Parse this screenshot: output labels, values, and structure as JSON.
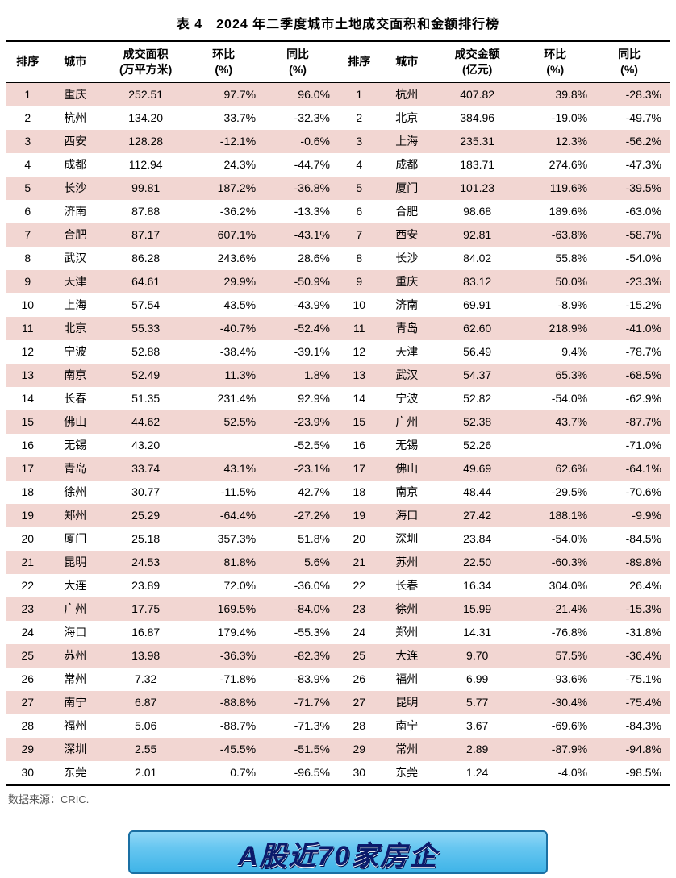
{
  "title": "表 4　2024 年二季度城市土地成交面积和金额排行榜",
  "source": "数据来源：CRIC.",
  "banner_text": "A股近70家房企",
  "colors": {
    "row_odd_bg": "#f2d6d2",
    "row_even_bg": "#ffffff",
    "border": "#000000",
    "text": "#000000",
    "source_text": "#555555",
    "banner_gradient_top": "#8fd7f7",
    "banner_gradient_mid": "#66c6f0",
    "banner_gradient_bot": "#3fb4e8",
    "banner_border": "#1a6fa3",
    "banner_text": "#0b1a6b"
  },
  "left_table": {
    "type": "table",
    "headers": {
      "rank": "排序",
      "city": "城市",
      "value_l1": "成交面积",
      "value_l2": "(万平方米)",
      "mom_l1": "环比",
      "mom_l2": "(%)",
      "yoy_l1": "同比",
      "yoy_l2": "(%)"
    },
    "rows": [
      {
        "rank": "1",
        "city": "重庆",
        "value": "252.51",
        "mom": "97.7%",
        "yoy": "96.0%"
      },
      {
        "rank": "2",
        "city": "杭州",
        "value": "134.20",
        "mom": "33.7%",
        "yoy": "-32.3%"
      },
      {
        "rank": "3",
        "city": "西安",
        "value": "128.28",
        "mom": "-12.1%",
        "yoy": "-0.6%"
      },
      {
        "rank": "4",
        "city": "成都",
        "value": "112.94",
        "mom": "24.3%",
        "yoy": "-44.7%"
      },
      {
        "rank": "5",
        "city": "长沙",
        "value": "99.81",
        "mom": "187.2%",
        "yoy": "-36.8%"
      },
      {
        "rank": "6",
        "city": "济南",
        "value": "87.88",
        "mom": "-36.2%",
        "yoy": "-13.3%"
      },
      {
        "rank": "7",
        "city": "合肥",
        "value": "87.17",
        "mom": "607.1%",
        "yoy": "-43.1%"
      },
      {
        "rank": "8",
        "city": "武汉",
        "value": "86.28",
        "mom": "243.6%",
        "yoy": "28.6%"
      },
      {
        "rank": "9",
        "city": "天津",
        "value": "64.61",
        "mom": "29.9%",
        "yoy": "-50.9%"
      },
      {
        "rank": "10",
        "city": "上海",
        "value": "57.54",
        "mom": "43.5%",
        "yoy": "-43.9%"
      },
      {
        "rank": "11",
        "city": "北京",
        "value": "55.33",
        "mom": "-40.7%",
        "yoy": "-52.4%"
      },
      {
        "rank": "12",
        "city": "宁波",
        "value": "52.88",
        "mom": "-38.4%",
        "yoy": "-39.1%"
      },
      {
        "rank": "13",
        "city": "南京",
        "value": "52.49",
        "mom": "11.3%",
        "yoy": "1.8%"
      },
      {
        "rank": "14",
        "city": "长春",
        "value": "51.35",
        "mom": "231.4%",
        "yoy": "92.9%"
      },
      {
        "rank": "15",
        "city": "佛山",
        "value": "44.62",
        "mom": "52.5%",
        "yoy": "-23.9%"
      },
      {
        "rank": "16",
        "city": "无锡",
        "value": "43.20",
        "mom": "",
        "yoy": "-52.5%"
      },
      {
        "rank": "17",
        "city": "青岛",
        "value": "33.74",
        "mom": "43.1%",
        "yoy": "-23.1%"
      },
      {
        "rank": "18",
        "city": "徐州",
        "value": "30.77",
        "mom": "-11.5%",
        "yoy": "42.7%"
      },
      {
        "rank": "19",
        "city": "郑州",
        "value": "25.29",
        "mom": "-64.4%",
        "yoy": "-27.2%"
      },
      {
        "rank": "20",
        "city": "厦门",
        "value": "25.18",
        "mom": "357.3%",
        "yoy": "51.8%"
      },
      {
        "rank": "21",
        "city": "昆明",
        "value": "24.53",
        "mom": "81.8%",
        "yoy": "5.6%"
      },
      {
        "rank": "22",
        "city": "大连",
        "value": "23.89",
        "mom": "72.0%",
        "yoy": "-36.0%"
      },
      {
        "rank": "23",
        "city": "广州",
        "value": "17.75",
        "mom": "169.5%",
        "yoy": "-84.0%"
      },
      {
        "rank": "24",
        "city": "海口",
        "value": "16.87",
        "mom": "179.4%",
        "yoy": "-55.3%"
      },
      {
        "rank": "25",
        "city": "苏州",
        "value": "13.98",
        "mom": "-36.3%",
        "yoy": "-82.3%"
      },
      {
        "rank": "26",
        "city": "常州",
        "value": "7.32",
        "mom": "-71.8%",
        "yoy": "-83.9%"
      },
      {
        "rank": "27",
        "city": "南宁",
        "value": "6.87",
        "mom": "-88.8%",
        "yoy": "-71.7%"
      },
      {
        "rank": "28",
        "city": "福州",
        "value": "5.06",
        "mom": "-88.7%",
        "yoy": "-71.3%"
      },
      {
        "rank": "29",
        "city": "深圳",
        "value": "2.55",
        "mom": "-45.5%",
        "yoy": "-51.5%"
      },
      {
        "rank": "30",
        "city": "东莞",
        "value": "2.01",
        "mom": "0.7%",
        "yoy": "-96.5%"
      }
    ]
  },
  "right_table": {
    "type": "table",
    "headers": {
      "rank": "排序",
      "city": "城市",
      "value_l1": "成交金额",
      "value_l2": "(亿元)",
      "mom_l1": "环比",
      "mom_l2": "(%)",
      "yoy_l1": "同比",
      "yoy_l2": "(%)"
    },
    "rows": [
      {
        "rank": "1",
        "city": "杭州",
        "value": "407.82",
        "mom": "39.8%",
        "yoy": "-28.3%"
      },
      {
        "rank": "2",
        "city": "北京",
        "value": "384.96",
        "mom": "-19.0%",
        "yoy": "-49.7%"
      },
      {
        "rank": "3",
        "city": "上海",
        "value": "235.31",
        "mom": "12.3%",
        "yoy": "-56.2%"
      },
      {
        "rank": "4",
        "city": "成都",
        "value": "183.71",
        "mom": "274.6%",
        "yoy": "-47.3%"
      },
      {
        "rank": "5",
        "city": "厦门",
        "value": "101.23",
        "mom": "119.6%",
        "yoy": "-39.5%"
      },
      {
        "rank": "6",
        "city": "合肥",
        "value": "98.68",
        "mom": "189.6%",
        "yoy": "-63.0%"
      },
      {
        "rank": "7",
        "city": "西安",
        "value": "92.81",
        "mom": "-63.8%",
        "yoy": "-58.7%"
      },
      {
        "rank": "8",
        "city": "长沙",
        "value": "84.02",
        "mom": "55.8%",
        "yoy": "-54.0%"
      },
      {
        "rank": "9",
        "city": "重庆",
        "value": "83.12",
        "mom": "50.0%",
        "yoy": "-23.3%"
      },
      {
        "rank": "10",
        "city": "济南",
        "value": "69.91",
        "mom": "-8.9%",
        "yoy": "-15.2%"
      },
      {
        "rank": "11",
        "city": "青岛",
        "value": "62.60",
        "mom": "218.9%",
        "yoy": "-41.0%"
      },
      {
        "rank": "12",
        "city": "天津",
        "value": "56.49",
        "mom": "9.4%",
        "yoy": "-78.7%"
      },
      {
        "rank": "13",
        "city": "武汉",
        "value": "54.37",
        "mom": "65.3%",
        "yoy": "-68.5%"
      },
      {
        "rank": "14",
        "city": "宁波",
        "value": "52.82",
        "mom": "-54.0%",
        "yoy": "-62.9%"
      },
      {
        "rank": "15",
        "city": "广州",
        "value": "52.38",
        "mom": "43.7%",
        "yoy": "-87.7%"
      },
      {
        "rank": "16",
        "city": "无锡",
        "value": "52.26",
        "mom": "",
        "yoy": "-71.0%"
      },
      {
        "rank": "17",
        "city": "佛山",
        "value": "49.69",
        "mom": "62.6%",
        "yoy": "-64.1%"
      },
      {
        "rank": "18",
        "city": "南京",
        "value": "48.44",
        "mom": "-29.5%",
        "yoy": "-70.6%"
      },
      {
        "rank": "19",
        "city": "海口",
        "value": "27.42",
        "mom": "188.1%",
        "yoy": "-9.9%"
      },
      {
        "rank": "20",
        "city": "深圳",
        "value": "23.84",
        "mom": "-54.0%",
        "yoy": "-84.5%"
      },
      {
        "rank": "21",
        "city": "苏州",
        "value": "22.50",
        "mom": "-60.3%",
        "yoy": "-89.8%"
      },
      {
        "rank": "22",
        "city": "长春",
        "value": "16.34",
        "mom": "304.0%",
        "yoy": "26.4%"
      },
      {
        "rank": "23",
        "city": "徐州",
        "value": "15.99",
        "mom": "-21.4%",
        "yoy": "-15.3%"
      },
      {
        "rank": "24",
        "city": "郑州",
        "value": "14.31",
        "mom": "-76.8%",
        "yoy": "-31.8%"
      },
      {
        "rank": "25",
        "city": "大连",
        "value": "9.70",
        "mom": "57.5%",
        "yoy": "-36.4%"
      },
      {
        "rank": "26",
        "city": "福州",
        "value": "6.99",
        "mom": "-93.6%",
        "yoy": "-75.1%"
      },
      {
        "rank": "27",
        "city": "昆明",
        "value": "5.77",
        "mom": "-30.4%",
        "yoy": "-75.4%"
      },
      {
        "rank": "28",
        "city": "南宁",
        "value": "3.67",
        "mom": "-69.6%",
        "yoy": "-84.3%"
      },
      {
        "rank": "29",
        "city": "常州",
        "value": "2.89",
        "mom": "-87.9%",
        "yoy": "-94.8%"
      },
      {
        "rank": "30",
        "city": "东莞",
        "value": "1.24",
        "mom": "-4.0%",
        "yoy": "-98.5%"
      }
    ]
  }
}
